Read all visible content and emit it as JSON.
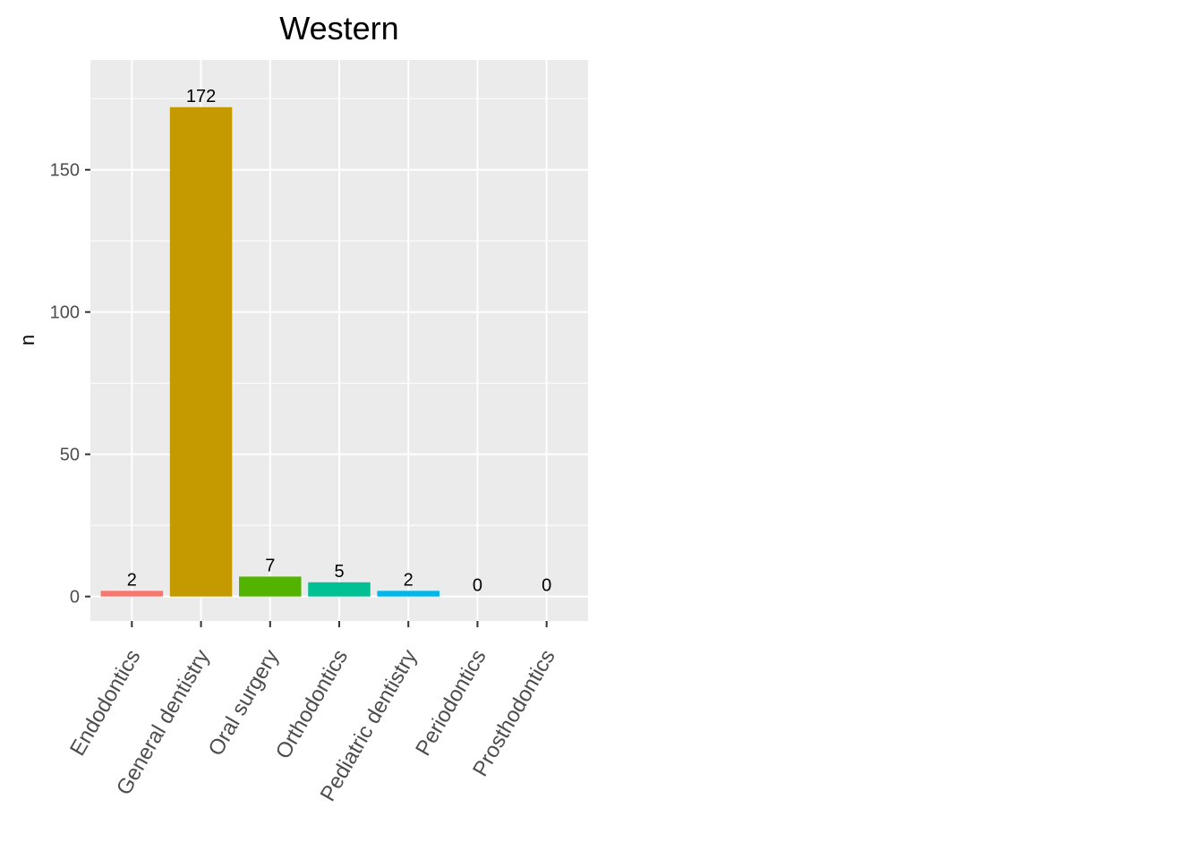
{
  "chart_data": {
    "type": "bar",
    "title": "Western",
    "xlabel": "",
    "ylabel": "n",
    "categories": [
      "Endodontics",
      "General dentistry",
      "Oral surgery",
      "Orthodontics",
      "Pediatric dentistry",
      "Periodontics",
      "Prosthodontics"
    ],
    "values": [
      2,
      172,
      7,
      5,
      2,
      0,
      0
    ],
    "data_labels": [
      "2",
      "172",
      "7",
      "5",
      "2",
      "0",
      "0"
    ],
    "colors": [
      "#F8766D",
      "#C49A00",
      "#53B400",
      "#00C094",
      "#00B6EB",
      "#A58AFF",
      "#FB61D7"
    ],
    "y_ticks": [
      0,
      50,
      100,
      150
    ],
    "y_tick_labels": [
      "0",
      "50",
      "100",
      "150"
    ],
    "ylim": [
      -8.6,
      188.6
    ],
    "grid": true,
    "legend": "none",
    "panel_background": "#EBEBEB",
    "grid_color": "#FFFFFF"
  }
}
